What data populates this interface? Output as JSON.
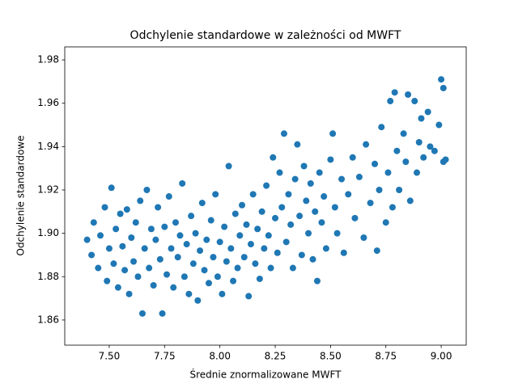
{
  "chart_data": {
    "type": "scatter",
    "title": "Odchylenie standardowe w zależności od MWFT",
    "x_label": "Średnie znormalizowane MWFT",
    "y_label": "Odchylenie standardowe",
    "color": "#1f77b4",
    "xlim": [
      7.299,
      9.113
    ],
    "ylim": [
      1.8484,
      1.986
    ],
    "xticks": [
      {
        "value": 7.5,
        "label": "7.50"
      },
      {
        "value": 7.75,
        "label": "7.75"
      },
      {
        "value": 8.0,
        "label": "8.00"
      },
      {
        "value": 8.25,
        "label": "8.25"
      },
      {
        "value": 8.5,
        "label": "8.50"
      },
      {
        "value": 8.75,
        "label": "8.75"
      },
      {
        "value": 9.0,
        "label": "9.00"
      }
    ],
    "yticks": [
      1.86,
      1.88,
      {
        "value": 1.9,
        "label": "1.90"
      },
      1.92,
      1.94,
      1.96,
      1.98
    ],
    "x": [
      7.4,
      7.42,
      7.43,
      7.45,
      7.46,
      7.48,
      7.49,
      7.5,
      7.51,
      7.52,
      7.53,
      7.54,
      7.55,
      7.56,
      7.57,
      7.58,
      7.59,
      7.6,
      7.61,
      7.62,
      7.63,
      7.64,
      7.65,
      7.66,
      7.67,
      7.68,
      7.69,
      7.7,
      7.71,
      7.72,
      7.73,
      7.74,
      7.75,
      7.76,
      7.77,
      7.78,
      7.79,
      7.8,
      7.81,
      7.82,
      7.83,
      7.84,
      7.85,
      7.86,
      7.87,
      7.88,
      7.89,
      7.9,
      7.91,
      7.92,
      7.93,
      7.94,
      7.95,
      7.96,
      7.97,
      7.98,
      7.99,
      8.0,
      8.01,
      8.02,
      8.03,
      8.04,
      8.05,
      8.06,
      8.07,
      8.08,
      8.09,
      8.1,
      8.11,
      8.12,
      8.13,
      8.14,
      8.15,
      8.16,
      8.17,
      8.18,
      8.19,
      8.2,
      8.21,
      8.22,
      8.23,
      8.24,
      8.25,
      8.26,
      8.27,
      8.28,
      8.29,
      8.3,
      8.31,
      8.32,
      8.33,
      8.34,
      8.35,
      8.36,
      8.37,
      8.38,
      8.39,
      8.4,
      8.41,
      8.42,
      8.43,
      8.44,
      8.45,
      8.46,
      8.47,
      8.48,
      8.5,
      8.51,
      8.52,
      8.53,
      8.55,
      8.56,
      8.58,
      8.6,
      8.61,
      8.63,
      8.65,
      8.66,
      8.68,
      8.7,
      8.71,
      8.72,
      8.73,
      8.75,
      8.76,
      8.77,
      8.78,
      8.79,
      8.8,
      8.81,
      8.83,
      8.84,
      8.85,
      8.86,
      8.88,
      8.89,
      8.9,
      8.91,
      8.92,
      8.94,
      8.95,
      8.97,
      9.0,
      9.01,
      9.02,
      8.99,
      9.01
    ],
    "y": [
      1.897,
      1.89,
      1.905,
      1.884,
      1.899,
      1.912,
      1.878,
      1.893,
      1.921,
      1.886,
      1.902,
      1.875,
      1.909,
      1.894,
      1.883,
      1.911,
      1.872,
      1.898,
      1.887,
      1.905,
      1.88,
      1.915,
      1.863,
      1.893,
      1.92,
      1.884,
      1.902,
      1.876,
      1.897,
      1.912,
      1.888,
      1.863,
      1.903,
      1.881,
      1.917,
      1.893,
      1.875,
      1.905,
      1.889,
      1.899,
      1.923,
      1.88,
      1.895,
      1.872,
      1.908,
      1.886,
      1.9,
      1.869,
      1.892,
      1.914,
      1.883,
      1.897,
      1.877,
      1.906,
      1.889,
      1.918,
      1.88,
      1.896,
      1.872,
      1.903,
      1.887,
      1.931,
      1.893,
      1.878,
      1.909,
      1.884,
      1.899,
      1.913,
      1.889,
      1.904,
      1.871,
      1.895,
      1.918,
      1.886,
      1.902,
      1.879,
      1.91,
      1.893,
      1.922,
      1.899,
      1.884,
      1.935,
      1.907,
      1.891,
      1.928,
      1.912,
      1.946,
      1.896,
      1.918,
      1.904,
      1.884,
      1.925,
      1.941,
      1.908,
      1.89,
      1.931,
      1.915,
      1.9,
      1.923,
      1.888,
      1.91,
      1.878,
      1.928,
      1.905,
      1.917,
      1.893,
      1.934,
      1.946,
      1.912,
      1.9,
      1.925,
      1.891,
      1.918,
      1.935,
      1.907,
      1.926,
      1.898,
      1.941,
      1.914,
      1.932,
      1.892,
      1.92,
      1.949,
      1.905,
      1.928,
      1.961,
      1.912,
      1.965,
      1.938,
      1.92,
      1.946,
      1.933,
      1.964,
      1.915,
      1.961,
      1.928,
      1.942,
      1.953,
      1.935,
      1.956,
      1.94,
      1.938,
      1.971,
      1.967,
      1.934,
      1.95,
      1.933
    ]
  }
}
